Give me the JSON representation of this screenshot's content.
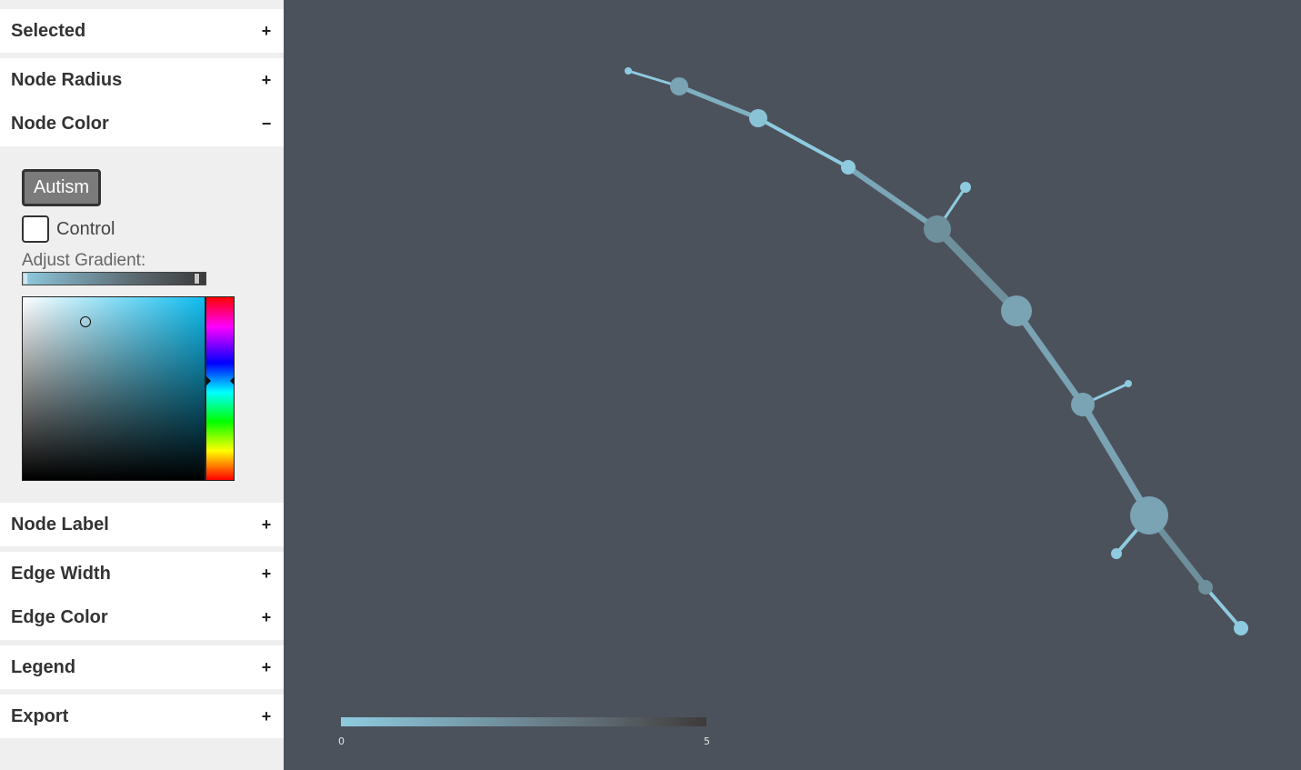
{
  "sidebar": {
    "sections": {
      "selected": {
        "label": "Selected",
        "icon": "+"
      },
      "node_radius": {
        "label": "Node Radius",
        "icon": "+"
      },
      "node_color": {
        "label": "Node Color",
        "icon": "−"
      },
      "node_label": {
        "label": "Node Label",
        "icon": "+"
      },
      "edge_width": {
        "label": "Edge Width",
        "icon": "+"
      },
      "edge_color": {
        "label": "Edge Color",
        "icon": "+"
      },
      "legend": {
        "label": "Legend",
        "icon": "+"
      },
      "export": {
        "label": "Export",
        "icon": "+"
      }
    },
    "node_color_panel": {
      "autism_button": "Autism",
      "control_label": "Control",
      "control_checked": false,
      "gradient_label": "Adjust Gradient:",
      "selected_color": "#8ecbe0",
      "hue_color": "#0fbdf0"
    }
  },
  "legend": {
    "min_label": "0",
    "max_label": "5",
    "start_color": "#8ecbe0",
    "end_color": "#3e3a39"
  },
  "colors": {
    "background": "#4c525c",
    "sidebar_bg": "#efefef",
    "node_light": "#8ecbe0",
    "node_dark": "#6e8f9c"
  }
}
